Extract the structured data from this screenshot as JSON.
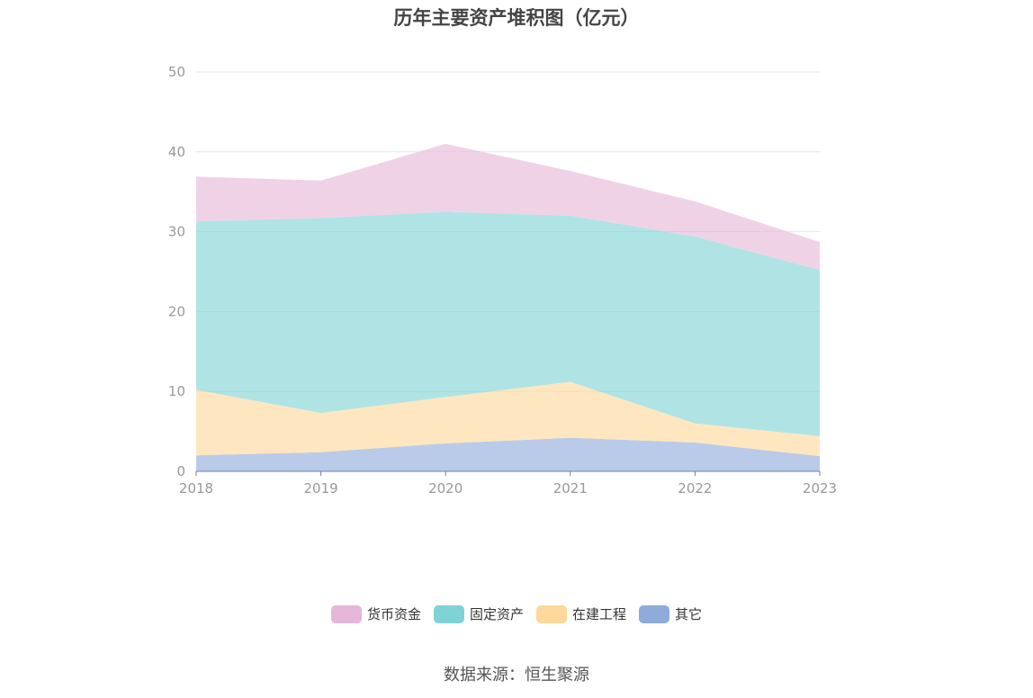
{
  "title": "历年主要资产堆积图（亿元）",
  "source": "数据来源：恒生聚源",
  "chart_data": {
    "type": "area",
    "stacked": true,
    "categories": [
      "2018",
      "2019",
      "2020",
      "2021",
      "2022",
      "2023"
    ],
    "ylim": [
      0,
      50
    ],
    "yticks": [
      0,
      10,
      20,
      30,
      40,
      50
    ],
    "grid": true,
    "legend_position": "bottom",
    "series": [
      {
        "name": "其它",
        "color": "#8fabdc",
        "values": [
          2.0,
          2.4,
          3.5,
          4.2,
          3.6,
          1.9
        ]
      },
      {
        "name": "在建工程",
        "color": "#fdd89a",
        "values": [
          8.2,
          4.9,
          5.8,
          7.0,
          2.4,
          2.5
        ]
      },
      {
        "name": "固定资产",
        "color": "#7fd3d4",
        "values": [
          21.1,
          24.4,
          23.2,
          20.8,
          23.4,
          20.8
        ]
      },
      {
        "name": "货币资金",
        "color": "#e6b6d9",
        "values": [
          5.6,
          4.7,
          8.5,
          5.6,
          4.4,
          3.5
        ]
      }
    ]
  }
}
